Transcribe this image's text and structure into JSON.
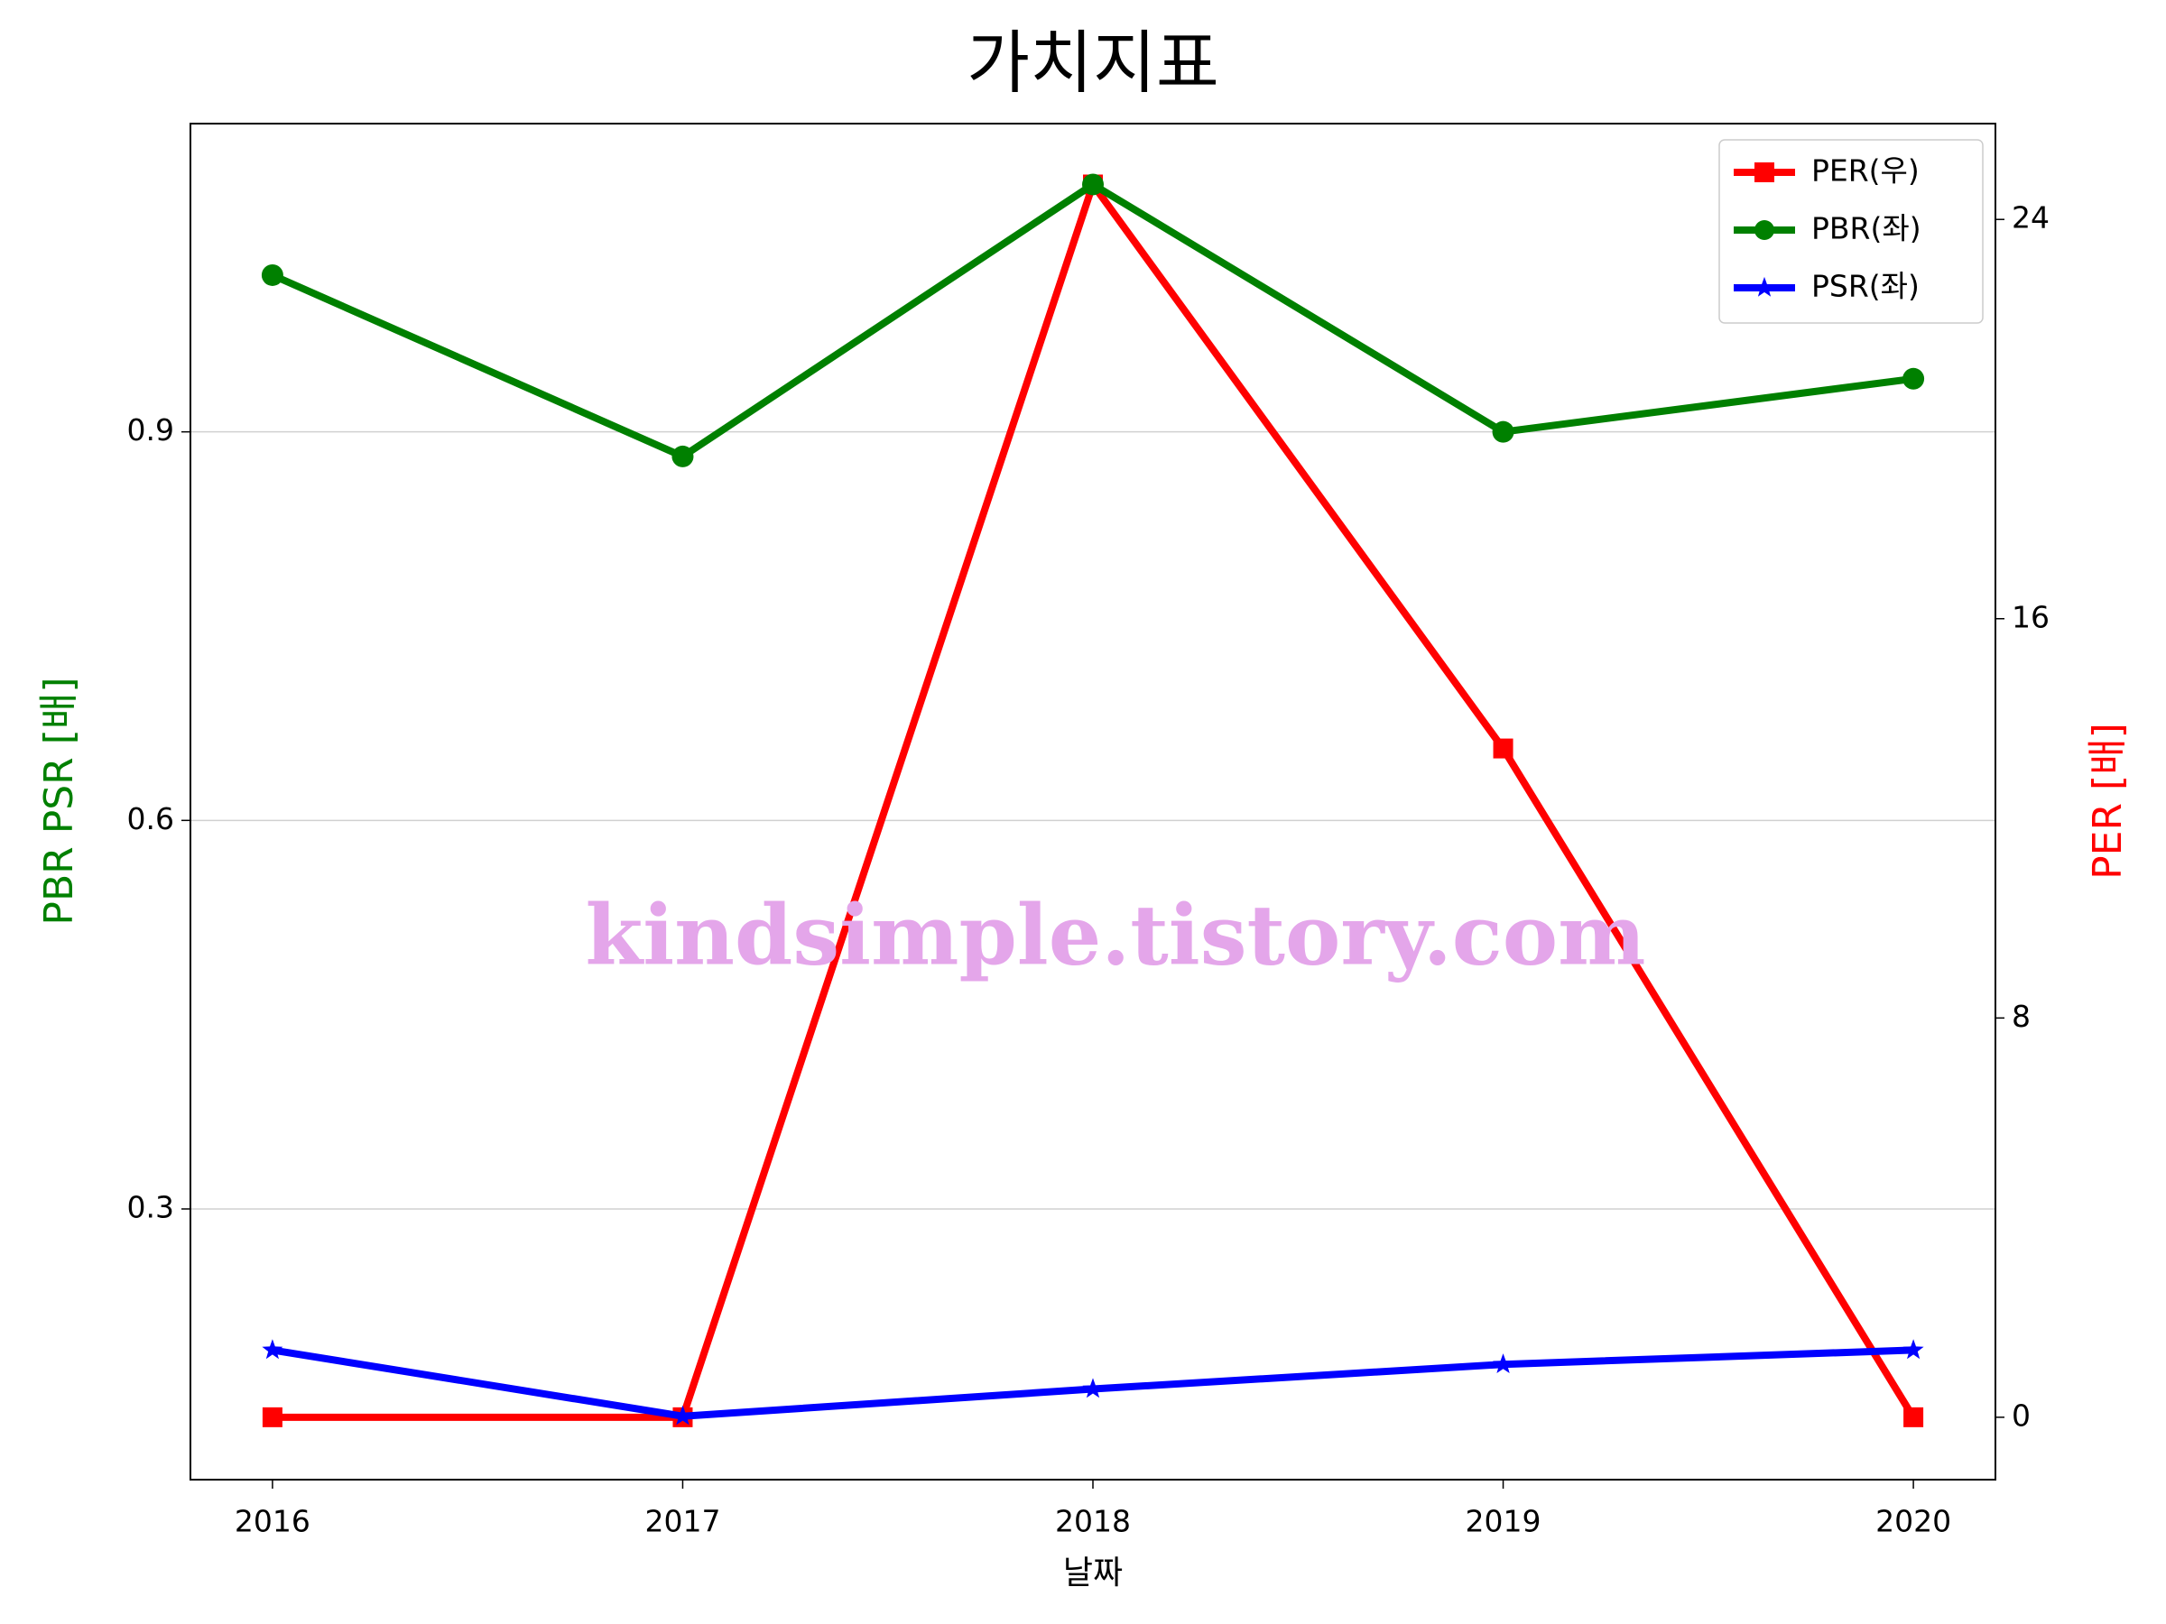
{
  "chart_data": {
    "type": "line",
    "title": "가치지표",
    "xlabel": "날짜",
    "ylabel": "PBR PSR [배]",
    "y2label": "PER [배]",
    "watermark": "kindsimple.tistory.com",
    "x": [
      2016,
      2017,
      2018,
      2019,
      2020
    ],
    "xlim": [
      2015.8,
      2020.2
    ],
    "xticks": [
      2016,
      2017,
      2018,
      2019,
      2020
    ],
    "ylim": [
      0.091,
      1.138
    ],
    "yticks": [
      0.3,
      0.6,
      0.9
    ],
    "y2lim": [
      -1.25,
      25.92
    ],
    "y2ticks": [
      0,
      8,
      16,
      24
    ],
    "grid": true,
    "legend": "upper right",
    "series": [
      {
        "name": "PER(우)",
        "color": "red",
        "marker": "square",
        "axis": "y2",
        "values": [
          0,
          0,
          24.7,
          13.4,
          0
        ]
      },
      {
        "name": "PBR(좌)",
        "color": "green",
        "marker": "circle",
        "values": [
          1.021,
          0.881,
          1.091,
          0.9,
          0.941
        ]
      },
      {
        "name": "PSR(좌)",
        "color": "blue",
        "marker": "star",
        "values": [
          0.191,
          0.14,
          0.161,
          0.18,
          0.191
        ]
      }
    ]
  }
}
